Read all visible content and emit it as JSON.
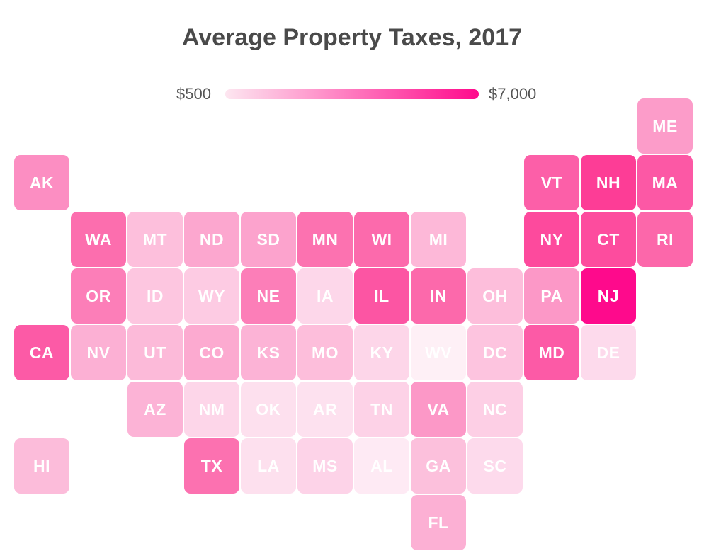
{
  "title": "Average Property Taxes, 2017",
  "legend": {
    "min_label": "$500",
    "max_label": "$7,000",
    "min_color": "#fde6f0",
    "max_color": "#ff0a8c"
  },
  "tiles": [
    {
      "state": "ME",
      "row": 0,
      "col": 11,
      "color": "#fc9cc9"
    },
    {
      "state": "AK",
      "row": 1,
      "col": 0,
      "color": "#fc8ec2"
    },
    {
      "state": "VT",
      "row": 1,
      "col": 9,
      "color": "#fc5fa8"
    },
    {
      "state": "NH",
      "row": 1,
      "col": 10,
      "color": "#fd3d96"
    },
    {
      "state": "MA",
      "row": 1,
      "col": 11,
      "color": "#fc58a5"
    },
    {
      "state": "WA",
      "row": 2,
      "col": 1,
      "color": "#fc6eae"
    },
    {
      "state": "MT",
      "row": 2,
      "col": 2,
      "color": "#fdbfdc"
    },
    {
      "state": "ND",
      "row": 2,
      "col": 3,
      "color": "#fca7cf"
    },
    {
      "state": "SD",
      "row": 2,
      "col": 4,
      "color": "#fca3cd"
    },
    {
      "state": "MN",
      "row": 2,
      "col": 5,
      "color": "#fc72b0"
    },
    {
      "state": "WI",
      "row": 2,
      "col": 6,
      "color": "#fc6aac"
    },
    {
      "state": "MI",
      "row": 2,
      "col": 7,
      "color": "#fdb8d8"
    },
    {
      "state": "NY",
      "row": 2,
      "col": 9,
      "color": "#fd4a9d"
    },
    {
      "state": "CT",
      "row": 2,
      "col": 10,
      "color": "#fd4c9e"
    },
    {
      "state": "RI",
      "row": 2,
      "col": 11,
      "color": "#fc67aa"
    },
    {
      "state": "OR",
      "row": 3,
      "col": 1,
      "color": "#fc7eb8"
    },
    {
      "state": "ID",
      "row": 3,
      "col": 2,
      "color": "#fdc6e0"
    },
    {
      "state": "WY",
      "row": 3,
      "col": 3,
      "color": "#fdcbe3"
    },
    {
      "state": "NE",
      "row": 3,
      "col": 4,
      "color": "#fc7eb8"
    },
    {
      "state": "IA",
      "row": 3,
      "col": 5,
      "color": "#fdd7ea"
    },
    {
      "state": "IL",
      "row": 3,
      "col": 6,
      "color": "#fc55a3"
    },
    {
      "state": "IN",
      "row": 3,
      "col": 7,
      "color": "#fc69ab"
    },
    {
      "state": "OH",
      "row": 3,
      "col": 8,
      "color": "#fdbedb"
    },
    {
      "state": "PA",
      "row": 3,
      "col": 9,
      "color": "#fc98c7"
    },
    {
      "state": "NJ",
      "row": 3,
      "col": 10,
      "color": "#fe0a8c"
    },
    {
      "state": "CA",
      "row": 4,
      "col": 0,
      "color": "#fc5aa6"
    },
    {
      "state": "NV",
      "row": 4,
      "col": 1,
      "color": "#fcb0d4"
    },
    {
      "state": "UT",
      "row": 4,
      "col": 2,
      "color": "#fcbad9"
    },
    {
      "state": "CO",
      "row": 4,
      "col": 3,
      "color": "#fcaad0"
    },
    {
      "state": "KS",
      "row": 4,
      "col": 4,
      "color": "#fcb3d6"
    },
    {
      "state": "MO",
      "row": 4,
      "col": 5,
      "color": "#fdbedb"
    },
    {
      "state": "KY",
      "row": 4,
      "col": 6,
      "color": "#fdd6e9"
    },
    {
      "state": "WV",
      "row": 4,
      "col": 7,
      "color": "#fef0f6"
    },
    {
      "state": "DC",
      "row": 4,
      "col": 8,
      "color": "#fdc4df"
    },
    {
      "state": "MD",
      "row": 4,
      "col": 9,
      "color": "#fc5aa6"
    },
    {
      "state": "DE",
      "row": 4,
      "col": 10,
      "color": "#fddaec"
    },
    {
      "state": "AZ",
      "row": 5,
      "col": 2,
      "color": "#fcb3d6"
    },
    {
      "state": "NM",
      "row": 5,
      "col": 3,
      "color": "#fdd6e9"
    },
    {
      "state": "OK",
      "row": 5,
      "col": 4,
      "color": "#fde0ee"
    },
    {
      "state": "AR",
      "row": 5,
      "col": 5,
      "color": "#fde1ef"
    },
    {
      "state": "TN",
      "row": 5,
      "col": 6,
      "color": "#fdd2e7"
    },
    {
      "state": "VA",
      "row": 5,
      "col": 7,
      "color": "#fc98c7"
    },
    {
      "state": "NC",
      "row": 5,
      "col": 8,
      "color": "#fdcfe5"
    },
    {
      "state": "HI",
      "row": 6,
      "col": 0,
      "color": "#fcbcda"
    },
    {
      "state": "TX",
      "row": 6,
      "col": 3,
      "color": "#fc71b0"
    },
    {
      "state": "LA",
      "row": 6,
      "col": 4,
      "color": "#fde0ee"
    },
    {
      "state": "MS",
      "row": 6,
      "col": 5,
      "color": "#fdd3e8"
    },
    {
      "state": "AL",
      "row": 6,
      "col": 6,
      "color": "#feeaf4"
    },
    {
      "state": "GA",
      "row": 6,
      "col": 7,
      "color": "#fcc0dc"
    },
    {
      "state": "SC",
      "row": 6,
      "col": 8,
      "color": "#fddaec"
    },
    {
      "state": "FL",
      "row": 7,
      "col": 7,
      "color": "#fcb0d4"
    }
  ]
}
